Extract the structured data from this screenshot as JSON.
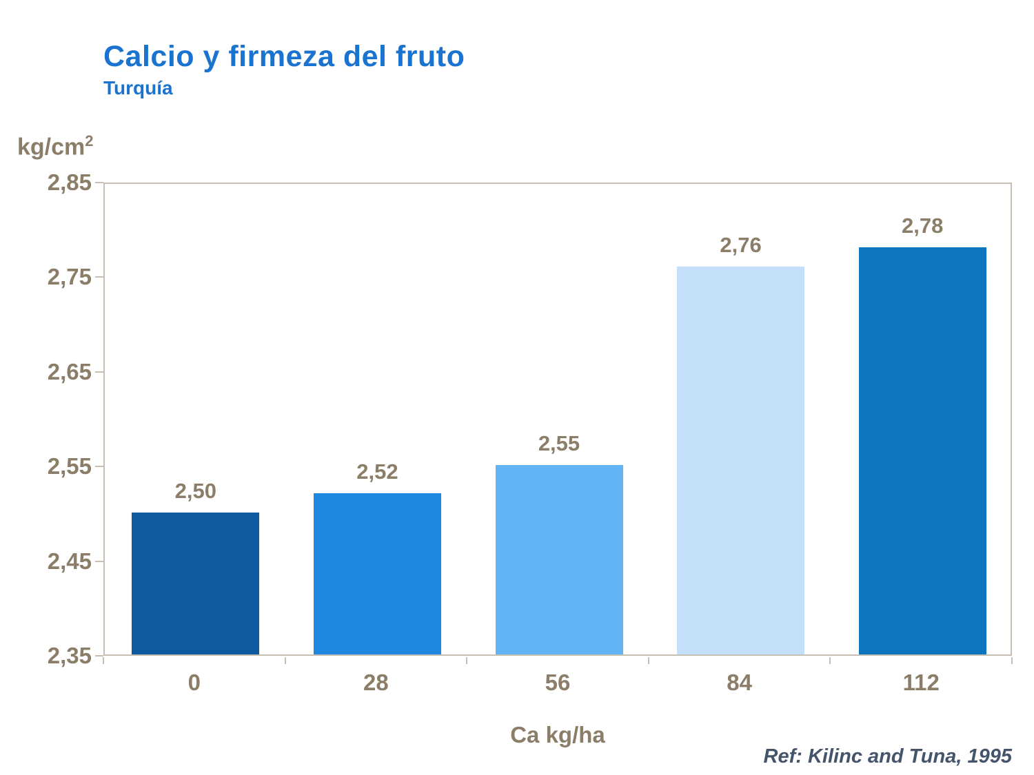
{
  "slide": {
    "title": "Calcio y firmeza del fruto",
    "subtitle": "Turquía",
    "y_unit_base": "kg/cm",
    "y_unit_sup": "2",
    "ref": "Ref: Kilinc and Tuna, 1995"
  },
  "colors": {
    "title": "#1a73cf",
    "axis_text": "#8b7d68",
    "plot_border": "#c6beb1",
    "ref_text": "#44546a",
    "bar_colors": [
      "#0d5a9e",
      "#1e88e0",
      "#63b4f4",
      "#c4e0f8",
      "#0d74c0"
    ]
  },
  "chart_data": {
    "type": "bar",
    "title": "Calcio y firmeza del fruto",
    "subtitle": "Turquía",
    "categories": [
      "0",
      "28",
      "56",
      "84",
      "112"
    ],
    "values": [
      2.5,
      2.52,
      2.55,
      2.76,
      2.78
    ],
    "value_labels": [
      "2,50",
      "2,52",
      "2,55",
      "2,76",
      "2,78"
    ],
    "xlabel": "Ca kg/ha",
    "ylabel": "kg/cm2",
    "ylim": [
      2.35,
      2.85
    ],
    "yticks": [
      2.35,
      2.45,
      2.55,
      2.65,
      2.75,
      2.85
    ],
    "ytick_labels": [
      "2,35",
      "2,45",
      "2,55",
      "2,65",
      "2,75",
      "2,85"
    ],
    "grid": false,
    "legend": false,
    "annotation": "Ref: Kilinc and Tuna, 1995"
  }
}
